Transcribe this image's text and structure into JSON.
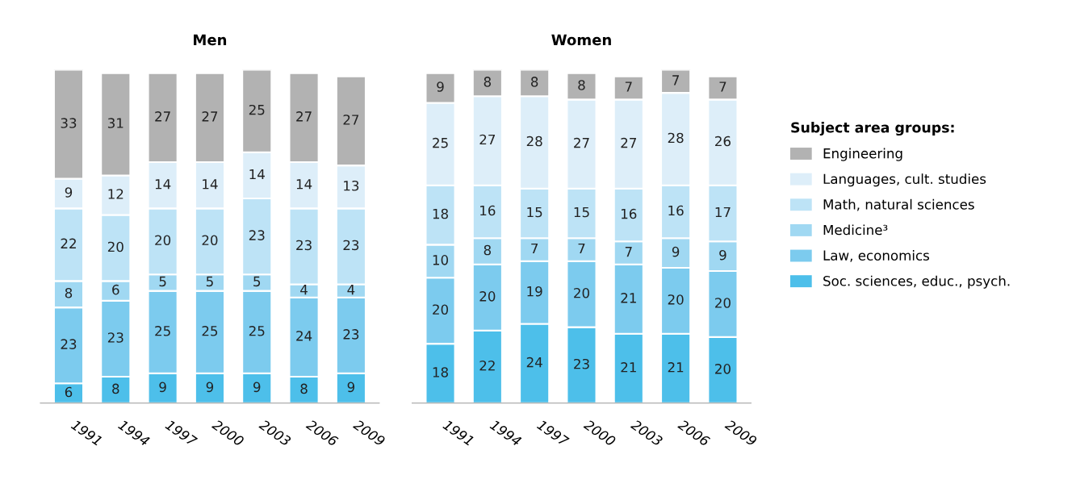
{
  "chart_data": [
    {
      "type": "bar",
      "title": "Men",
      "stacked": true,
      "data_labels": true,
      "tick_labels": "x",
      "grid": false,
      "categories": [
        "1991",
        "1994",
        "1997",
        "2000",
        "2003",
        "2006",
        "2009"
      ],
      "series": [
        {
          "color": "#4dbfea",
          "values": [
            6,
            8,
            9,
            9,
            9,
            8,
            9
          ]
        },
        {
          "color": "#7ccbee",
          "values": [
            23,
            23,
            25,
            25,
            25,
            24,
            23
          ]
        },
        {
          "color": "#a0d8f2",
          "values": [
            8,
            6,
            5,
            5,
            5,
            4,
            4
          ]
        },
        {
          "color": "#bde3f6",
          "values": [
            22,
            20,
            20,
            20,
            23,
            23,
            23
          ]
        },
        {
          "color": "#ddeef9",
          "values": [
            9,
            12,
            14,
            14,
            14,
            14,
            13
          ]
        },
        {
          "color": "#b2b2b2",
          "values": [
            33,
            31,
            27,
            27,
            25,
            27,
            27
          ]
        }
      ]
    },
    {
      "type": "bar",
      "title": "Women",
      "stacked": true,
      "data_labels": true,
      "tick_labels": "x",
      "grid": false,
      "legend": "right",
      "legend_title": "Subject area groups:",
      "categories": [
        "1991",
        "1994",
        "1997",
        "2000",
        "2003",
        "2006",
        "2009"
      ],
      "series": [
        {
          "name": "Soc. sciences, educ., psych.",
          "color": "#4dbfea",
          "values": [
            18,
            22,
            24,
            23,
            21,
            21,
            20
          ]
        },
        {
          "name": "Law, economics",
          "color": "#7ccbee",
          "values": [
            20,
            20,
            19,
            20,
            21,
            20,
            20
          ]
        },
        {
          "name": "Medicine³",
          "color": "#a0d8f2",
          "values": [
            10,
            8,
            7,
            7,
            7,
            9,
            9
          ]
        },
        {
          "name": "Math, natural sciences",
          "color": "#bde3f6",
          "values": [
            18,
            16,
            15,
            15,
            16,
            16,
            17
          ]
        },
        {
          "name": "Languages, cult. studies",
          "color": "#ddeef9",
          "values": [
            25,
            27,
            28,
            27,
            27,
            28,
            26
          ]
        },
        {
          "name": "Engineering",
          "color": "#b2b2b2",
          "values": [
            9,
            8,
            8,
            8,
            7,
            7,
            7
          ]
        }
      ]
    }
  ]
}
